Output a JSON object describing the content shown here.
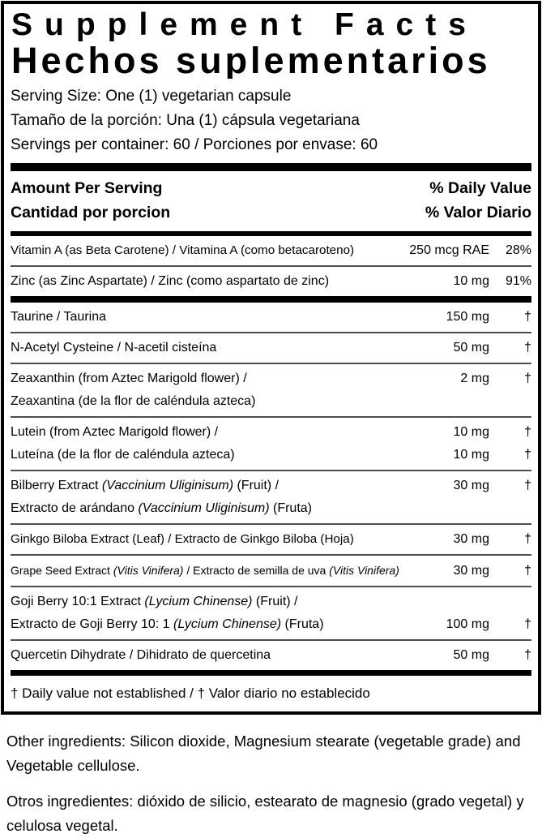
{
  "panel": {
    "title_en": "Supplement Facts",
    "title_es": "Hechos suplementarios",
    "serving_lines": [
      "Serving Size: One (1) vegetarian capsule",
      "Tamaño de la porción: Una (1) cápsula vegetariana",
      "Servings per container: 60 / Porciones por envase: 60"
    ],
    "column_header": {
      "amount_en": "Amount Per Serving",
      "amount_es": "Cantidad por porcion",
      "dv_en": "% Daily Value",
      "dv_es": "% Valor Diario"
    },
    "sections": [
      {
        "rows": [
          {
            "lines": [
              {
                "name": [
                  {
                    "t": "Vitamin A (as Beta Carotene) / Vitamina A (como betacaroteno)"
                  }
                ],
                "amount": "250 mcg RAE",
                "dv": "28%"
              }
            ]
          },
          {
            "lines": [
              {
                "name": [
                  {
                    "t": "Zinc (as Zinc Aspartate) / Zinc (como aspartato de zinc)"
                  }
                ],
                "amount": "10 mg",
                "dv": "91%"
              }
            ]
          }
        ]
      },
      {
        "rows": [
          {
            "lines": [
              {
                "name": [
                  {
                    "t": "Taurine / Taurina"
                  }
                ],
                "amount": "150 mg",
                "dv": "†"
              }
            ]
          },
          {
            "lines": [
              {
                "name": [
                  {
                    "t": "N-Acetyl Cysteine / N-acetil cisteína"
                  }
                ],
                "amount": "50 mg",
                "dv": "†"
              }
            ]
          },
          {
            "lines": [
              {
                "name": [
                  {
                    "t": "Zeaxanthin (from Aztec Marigold flower) /"
                  }
                ],
                "amount": "2 mg",
                "dv": "†"
              },
              {
                "name": [
                  {
                    "t": "Zeaxantina (de la flor de caléndula azteca)"
                  }
                ]
              }
            ]
          },
          {
            "lines": [
              {
                "name": [
                  {
                    "t": "Lutein (from Aztec Marigold flower) /"
                  }
                ],
                "amount": "10 mg",
                "dv": "†"
              },
              {
                "name": [
                  {
                    "t": "Luteína (de la flor de caléndula azteca)"
                  }
                ],
                "amount": "10 mg",
                "dv": "†"
              }
            ]
          },
          {
            "lines": [
              {
                "name": [
                  {
                    "t": "Bilberry Extract "
                  },
                  {
                    "t": "(Vaccinium Uliginisum)",
                    "i": true
                  },
                  {
                    "t": " (Fruit) /"
                  }
                ],
                "amount": "30 mg",
                "dv": "†"
              },
              {
                "name": [
                  {
                    "t": "Extracto de arándano "
                  },
                  {
                    "t": "(Vaccinium Uliginisum)",
                    "i": true
                  },
                  {
                    "t": " (Fruta)"
                  }
                ]
              }
            ]
          },
          {
            "lines": [
              {
                "name": [
                  {
                    "t": "Ginkgo Biloba Extract (Leaf) / Extracto de Ginkgo Biloba (Hoja)"
                  }
                ],
                "amount": "30 mg",
                "dv": "†"
              }
            ]
          },
          {
            "lines": [
              {
                "name": [
                  {
                    "t": "Grape Seed Extract "
                  },
                  {
                    "t": "(Vitis Vinifera)",
                    "i": true
                  },
                  {
                    "t": " / Extracto de semilla de uva "
                  },
                  {
                    "t": "(Vitis Vinifera)",
                    "i": true
                  }
                ],
                "amount": "30 mg",
                "dv": "†"
              }
            ]
          },
          {
            "lines": [
              {
                "name": [
                  {
                    "t": "Goji Berry 10:1 Extract "
                  },
                  {
                    "t": "(Lycium Chinense)",
                    "i": true
                  },
                  {
                    "t": " (Fruit) /"
                  }
                ]
              },
              {
                "name": [
                  {
                    "t": "Extracto de Goji Berry 10: 1 "
                  },
                  {
                    "t": "(Lycium Chinense)",
                    "i": true
                  },
                  {
                    "t": " (Fruta)"
                  }
                ],
                "amount": "100 mg",
                "dv": "†"
              }
            ]
          },
          {
            "lines": [
              {
                "name": [
                  {
                    "t": "Quercetin Dihydrate / Dihidrato de quercetina"
                  }
                ],
                "amount": "50 mg",
                "dv": "†"
              }
            ]
          }
        ]
      }
    ],
    "footnote": "† Daily value not established  / † Valor diario no establecido"
  },
  "below_panel": {
    "other_ingredients_en": "Other ingredients: Silicon dioxide, Magnesium stearate (vegetable grade) and Vegetable cellulose.",
    "other_ingredients_es": "Otros ingredientes: dióxido de silicio, estearato de magnesio (grado vegetal) y celulosa vegetal."
  },
  "colors": {
    "text": "#000000",
    "background": "#ffffff",
    "heavy_rule": "#000000",
    "thin_rule": "#4d4d4d"
  }
}
